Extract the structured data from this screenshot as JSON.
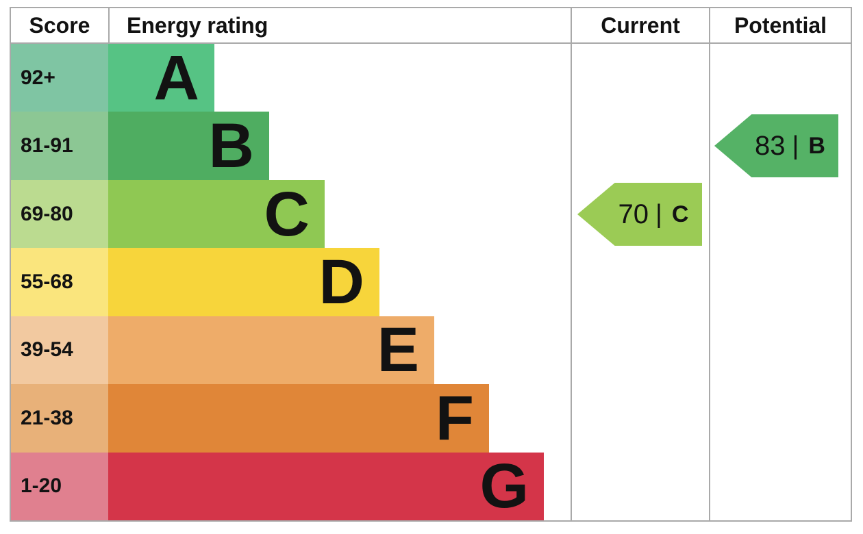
{
  "table": {
    "headers": {
      "score": "Score",
      "rating": "Energy rating",
      "current": "Current",
      "potential": "Potential"
    },
    "border_color": "#a9a9a9"
  },
  "bands": [
    {
      "letter": "A",
      "range": "92+",
      "bar_color": "#56c384",
      "range_color": "#7fc5a3"
    },
    {
      "letter": "B",
      "range": "81-91",
      "bar_color": "#4fad61",
      "range_color": "#8cc794"
    },
    {
      "letter": "C",
      "range": "69-80",
      "bar_color": "#8fc853",
      "range_color": "#bbdb90"
    },
    {
      "letter": "D",
      "range": "55-68",
      "bar_color": "#f7d53b",
      "range_color": "#fae57d"
    },
    {
      "letter": "E",
      "range": "39-54",
      "bar_color": "#eeac69",
      "range_color": "#f2c9a0"
    },
    {
      "letter": "F",
      "range": "21-38",
      "bar_color": "#e08638",
      "range_color": "#e8b179"
    },
    {
      "letter": "G",
      "range": "1-20",
      "bar_color": "#d43549",
      "range_color": "#e0808f"
    }
  ],
  "current": {
    "score": "70",
    "separator": "|",
    "band": "C",
    "color": "#9bcb55"
  },
  "potential": {
    "score": "83",
    "separator": "|",
    "band": "B",
    "color": "#55b266"
  },
  "chart_data": {
    "type": "bar",
    "title": "Energy rating",
    "categories": [
      "A",
      "B",
      "C",
      "D",
      "E",
      "F",
      "G"
    ],
    "score_ranges": [
      "92+",
      "81-91",
      "69-80",
      "55-68",
      "39-54",
      "21-38",
      "1-20"
    ],
    "band_colors": [
      "#56c384",
      "#4fad61",
      "#8fc853",
      "#f7d53b",
      "#eeac69",
      "#e08638",
      "#d43549"
    ],
    "columns": [
      "Score",
      "Energy rating",
      "Current",
      "Potential"
    ],
    "annotations": [
      {
        "label": "Current",
        "value": 70,
        "band": "C",
        "color": "#9bcb55"
      },
      {
        "label": "Potential",
        "value": 83,
        "band": "B",
        "color": "#55b266"
      }
    ],
    "legend_position": "none",
    "grid": false
  }
}
